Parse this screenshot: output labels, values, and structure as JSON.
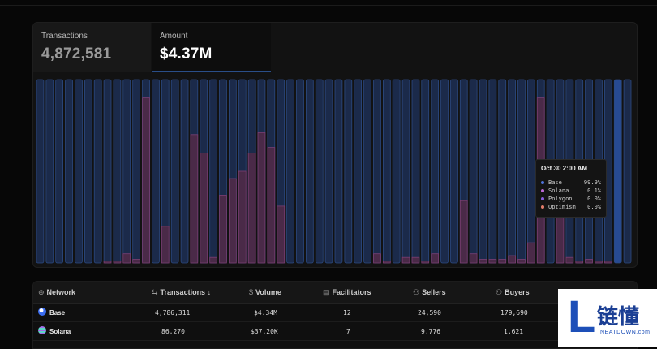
{
  "tabs": [
    {
      "label": "Transactions",
      "value": "4,872,581"
    },
    {
      "label": "Amount",
      "value": "$4.37M"
    }
  ],
  "chart_data": {
    "type": "bar",
    "ylim": [
      0,
      100
    ],
    "grid": false,
    "values": [
      0,
      0,
      0,
      0,
      0,
      0,
      0,
      1,
      1,
      5,
      2,
      90,
      0,
      20,
      0,
      0,
      70,
      60,
      3,
      37,
      46,
      50,
      60,
      71,
      63,
      31,
      0,
      0,
      0,
      0,
      0,
      0,
      0,
      0,
      0,
      5,
      1,
      0,
      3,
      3,
      1,
      5,
      0,
      0,
      34,
      5,
      2,
      2,
      2,
      4,
      2,
      11,
      90,
      0,
      53,
      3,
      1,
      2,
      1,
      1,
      0,
      0
    ]
  },
  "tooltip": {
    "title": "Oct 30 2:00 AM",
    "rows": [
      {
        "name": "Base",
        "value": "99.9%",
        "color": "#4f73d9"
      },
      {
        "name": "Solana",
        "value": "0.1%",
        "color": "#c06ad8"
      },
      {
        "name": "Polygon",
        "value": "0.0%",
        "color": "#8a5ee0"
      },
      {
        "name": "Optimism",
        "value": "0.0%",
        "color": "#e27c6a"
      }
    ]
  },
  "table": {
    "headers": [
      {
        "icon": "⊕",
        "label": "Network"
      },
      {
        "icon": "⇆",
        "label": "Transactions ↓"
      },
      {
        "icon": "$",
        "label": "Volume"
      },
      {
        "icon": "▤",
        "label": "Facilitators"
      },
      {
        "icon": "⚇",
        "label": "Sellers"
      },
      {
        "icon": "⚇",
        "label": "Buyers"
      }
    ],
    "rows": [
      {
        "network": "Base",
        "transactions": "4,786,311",
        "volume": "$4.34M",
        "facilitators": "12",
        "sellers": "24,590",
        "buyers": "179,690",
        "logo_color": "#3b6df0"
      },
      {
        "network": "Solana",
        "transactions": "86,270",
        "volume": "$37.20K",
        "facilitators": "7",
        "sellers": "9,776",
        "buyers": "1,621",
        "logo_color": "#a46ee8"
      }
    ]
  },
  "watermark": {
    "letter": "L",
    "text": "链懂",
    "sub": "NEATDOWN.com"
  },
  "colors": {
    "bar_bg": "#1b2a4a",
    "bar_border": "#2c4a82",
    "bar_fill": "#4a2a48",
    "bar_fill_border": "#7a3f74",
    "highlight": "#274a92"
  }
}
